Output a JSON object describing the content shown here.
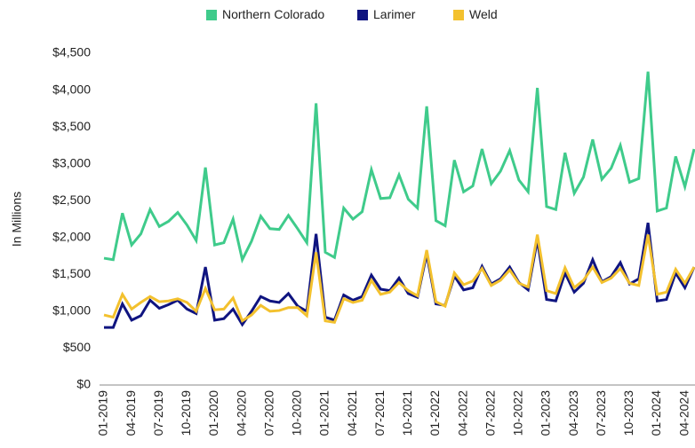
{
  "chart_data": {
    "type": "line",
    "y_label": "In Millions",
    "categories": [
      "01-2019",
      null,
      null,
      "04-2019",
      null,
      null,
      "07-2019",
      null,
      null,
      "10-2019",
      null,
      null,
      "01-2020",
      null,
      null,
      "04-2020",
      null,
      null,
      "07-2020",
      null,
      null,
      "10-2020",
      null,
      null,
      "01-2021",
      null,
      null,
      "04-2021",
      null,
      null,
      "07-2021",
      null,
      null,
      "10-2021",
      null,
      null,
      "01-2022",
      null,
      null,
      "04-2022",
      null,
      null,
      "07-2022",
      null,
      null,
      "10-2022",
      null,
      null,
      "01-2023",
      null,
      null,
      "04-2023",
      null,
      null,
      "07-2023",
      null,
      null,
      "10-2023",
      null,
      null,
      "01-2024",
      null,
      null,
      "04-2024",
      null
    ],
    "series": [
      {
        "name": "Northern Colorado",
        "color": "#3fcb8b",
        "values": [
          1720,
          1700,
          2330,
          1900,
          2050,
          2380,
          2150,
          2220,
          2340,
          2170,
          1960,
          2950,
          1900,
          1930,
          2250,
          1700,
          1950,
          2290,
          2120,
          2110,
          2300,
          2120,
          1930,
          3820,
          1800,
          1730,
          2400,
          2250,
          2350,
          2920,
          2530,
          2540,
          2850,
          2520,
          2400,
          3780,
          2230,
          2160,
          3050,
          2620,
          2700,
          3200,
          2730,
          2900,
          3180,
          2780,
          2620,
          4030,
          2420,
          2380,
          3150,
          2600,
          2820,
          3330,
          2790,
          2940,
          3250,
          2750,
          2800,
          4250,
          2360,
          2400,
          3100,
          2690,
          3200
        ]
      },
      {
        "name": "Larimer",
        "color": "#0f1480",
        "values": [
          780,
          780,
          1100,
          880,
          940,
          1150,
          1040,
          1090,
          1150,
          1030,
          970,
          1600,
          880,
          900,
          1030,
          820,
          1000,
          1200,
          1140,
          1120,
          1240,
          1070,
          1000,
          2050,
          920,
          880,
          1220,
          1150,
          1200,
          1490,
          1300,
          1280,
          1450,
          1240,
          1190,
          1780,
          1100,
          1080,
          1480,
          1290,
          1320,
          1610,
          1370,
          1440,
          1600,
          1390,
          1290,
          1970,
          1160,
          1140,
          1520,
          1260,
          1380,
          1700,
          1400,
          1470,
          1660,
          1370,
          1440,
          2200,
          1140,
          1160,
          1520,
          1320,
          1600
        ]
      },
      {
        "name": "Weld",
        "color": "#f3c12e",
        "values": [
          950,
          920,
          1230,
          1030,
          1120,
          1200,
          1130,
          1140,
          1170,
          1120,
          1000,
          1310,
          1020,
          1030,
          1180,
          870,
          950,
          1080,
          1000,
          1010,
          1050,
          1050,
          940,
          1800,
          870,
          850,
          1170,
          1120,
          1150,
          1420,
          1230,
          1260,
          1390,
          1280,
          1210,
          1830,
          1130,
          1070,
          1520,
          1360,
          1410,
          1580,
          1350,
          1420,
          1560,
          1380,
          1330,
          2040,
          1280,
          1240,
          1590,
          1320,
          1420,
          1600,
          1390,
          1450,
          1580,
          1380,
          1350,
          2040,
          1230,
          1260,
          1570,
          1380,
          1600
        ]
      }
    ],
    "ylim": [
      0,
      4500
    ],
    "yticks": [
      {
        "value": 0,
        "label": "$0"
      },
      {
        "value": 500,
        "label": "$500"
      },
      {
        "value": 1000,
        "label": "$1,000"
      },
      {
        "value": 1500,
        "label": "$1,500"
      },
      {
        "value": 2000,
        "label": "$2,000"
      },
      {
        "value": 2500,
        "label": "$2,500"
      },
      {
        "value": 3000,
        "label": "$3,000"
      },
      {
        "value": 3500,
        "label": "$3,500"
      },
      {
        "value": 4000,
        "label": "$4,000"
      },
      {
        "value": 4500,
        "label": "$4,500"
      }
    ],
    "grid": false,
    "legend": "top"
  }
}
